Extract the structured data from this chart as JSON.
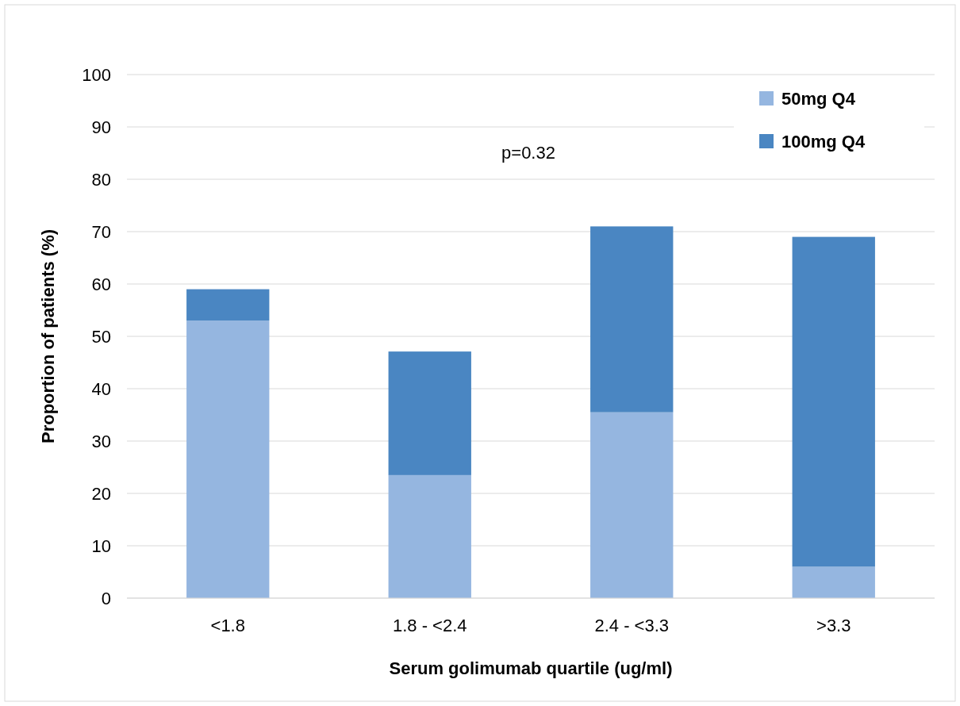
{
  "chart_data": {
    "type": "bar",
    "stacked": true,
    "xlabel": "Serum golimumab quartile (ug/ml)",
    "ylabel": "Proportion of patients (%)",
    "categories": [
      "<1.8",
      "1.8 - <2.4",
      "2.4 - <3.3",
      ">3.3"
    ],
    "series": [
      {
        "name": "50mg Q4",
        "color": "#95b6e0",
        "values": [
          53,
          23.5,
          35.5,
          6
        ]
      },
      {
        "name": "100mg Q4",
        "color": "#4a86c2",
        "values": [
          6,
          23.6,
          35.5,
          63
        ]
      }
    ],
    "ylim": [
      0,
      100
    ],
    "yticks": [
      0,
      10,
      20,
      30,
      40,
      50,
      60,
      70,
      80,
      90,
      100
    ],
    "grid": "y",
    "legend": "top right",
    "annotations": [
      "p=0.32"
    ]
  }
}
